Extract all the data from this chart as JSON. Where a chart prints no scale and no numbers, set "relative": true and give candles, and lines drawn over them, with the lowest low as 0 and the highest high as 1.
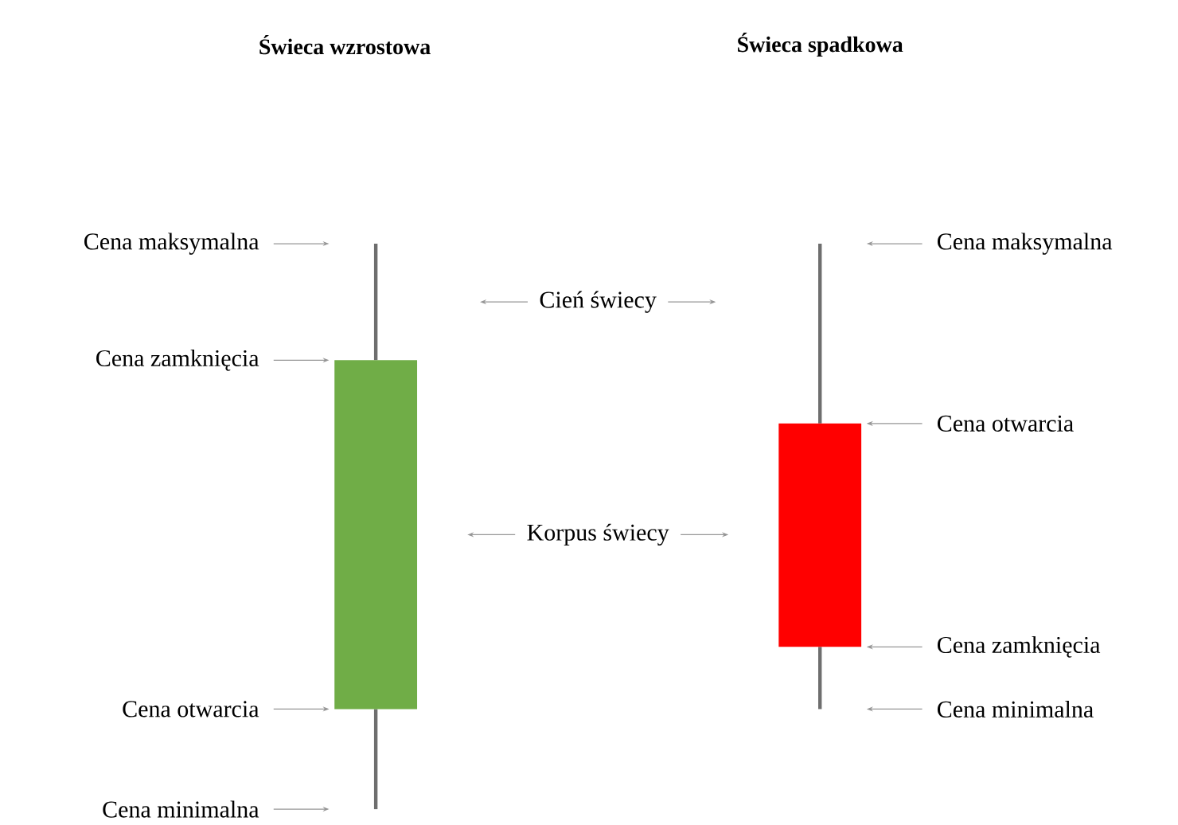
{
  "chart_data": {
    "type": "candlestick",
    "relative": true,
    "categories": [
      "Świeca wzrostowa",
      "Świeca spadkowa"
    ],
    "ohlc": [
      [
        0.177,
        1,
        0,
        0.794
      ],
      [
        0.682,
        1,
        0.177,
        0.287
      ]
    ],
    "colors": [
      "#70ad47",
      "#ff0000"
    ],
    "annotations": [
      "Cena maksymalna",
      "Cena zamknięcia",
      "Cena otwarcia",
      "Cena minimalna",
      "Cena maksymalna",
      "Cena otwarcia",
      "Cena zamknięcia",
      "Cena minimalna",
      "Cień świecy",
      "Korpus świecy"
    ]
  }
}
